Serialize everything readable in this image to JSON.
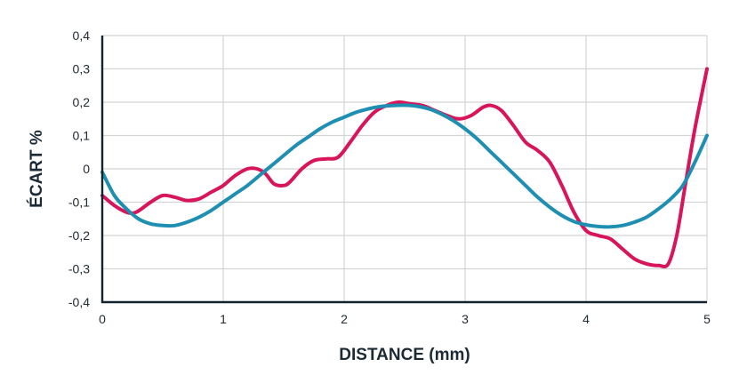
{
  "chart_data": {
    "type": "line",
    "xlabel": "DISTANCE (mm)",
    "ylabel": "ÉCART %",
    "xlim": [
      0,
      5
    ],
    "ylim": [
      -0.4,
      0.4
    ],
    "x_ticks": [
      "0",
      "1",
      "2",
      "3",
      "4",
      "5"
    ],
    "y_ticks": [
      "-0,4",
      "-0,3",
      "-0,2",
      "-0,1",
      "0",
      "0,1",
      "0,2",
      "0,3",
      "0,4"
    ],
    "grid": true,
    "series": [
      {
        "color": "#d8145a",
        "x": [
          0,
          0.1,
          0.2,
          0.28,
          0.4,
          0.5,
          0.6,
          0.7,
          0.8,
          0.9,
          1.0,
          1.1,
          1.2,
          1.28,
          1.35,
          1.42,
          1.5,
          1.55,
          1.65,
          1.75,
          1.85,
          1.95,
          2.05,
          2.15,
          2.25,
          2.35,
          2.45,
          2.55,
          2.65,
          2.75,
          2.85,
          2.95,
          3.05,
          3.15,
          3.22,
          3.3,
          3.4,
          3.5,
          3.6,
          3.7,
          3.8,
          3.9,
          4.0,
          4.1,
          4.2,
          4.3,
          4.4,
          4.5,
          4.6,
          4.68,
          4.75,
          4.82,
          4.9,
          5.0
        ],
        "y": [
          -0.08,
          -0.11,
          -0.13,
          -0.13,
          -0.1,
          -0.08,
          -0.085,
          -0.095,
          -0.09,
          -0.07,
          -0.05,
          -0.02,
          0.0,
          0.0,
          -0.015,
          -0.045,
          -0.05,
          -0.04,
          0.0,
          0.025,
          0.03,
          0.035,
          0.08,
          0.13,
          0.17,
          0.19,
          0.2,
          0.195,
          0.19,
          0.175,
          0.16,
          0.15,
          0.16,
          0.185,
          0.19,
          0.175,
          0.13,
          0.08,
          0.055,
          0.02,
          -0.05,
          -0.13,
          -0.185,
          -0.2,
          -0.21,
          -0.24,
          -0.27,
          -0.285,
          -0.29,
          -0.285,
          -0.2,
          -0.05,
          0.12,
          0.3
        ]
      },
      {
        "color": "#1e8fb2",
        "x": [
          0,
          0.1,
          0.2,
          0.3,
          0.4,
          0.5,
          0.6,
          0.7,
          0.8,
          0.9,
          1.0,
          1.1,
          1.2,
          1.3,
          1.4,
          1.5,
          1.6,
          1.7,
          1.8,
          1.9,
          2.0,
          2.1,
          2.2,
          2.3,
          2.4,
          2.5,
          2.6,
          2.7,
          2.8,
          2.9,
          3.0,
          3.1,
          3.2,
          3.3,
          3.4,
          3.5,
          3.6,
          3.7,
          3.8,
          3.9,
          4.0,
          4.1,
          4.2,
          4.3,
          4.4,
          4.5,
          4.6,
          4.7,
          4.8,
          4.9,
          5.0
        ],
        "y": [
          -0.01,
          -0.08,
          -0.12,
          -0.15,
          -0.165,
          -0.17,
          -0.17,
          -0.16,
          -0.145,
          -0.125,
          -0.1,
          -0.075,
          -0.05,
          -0.02,
          0.01,
          0.04,
          0.07,
          0.095,
          0.12,
          0.14,
          0.155,
          0.17,
          0.18,
          0.187,
          0.19,
          0.191,
          0.188,
          0.18,
          0.165,
          0.145,
          0.12,
          0.09,
          0.055,
          0.02,
          -0.015,
          -0.05,
          -0.085,
          -0.115,
          -0.14,
          -0.158,
          -0.168,
          -0.173,
          -0.174,
          -0.17,
          -0.16,
          -0.145,
          -0.12,
          -0.09,
          -0.05,
          0.02,
          0.1
        ]
      }
    ]
  }
}
